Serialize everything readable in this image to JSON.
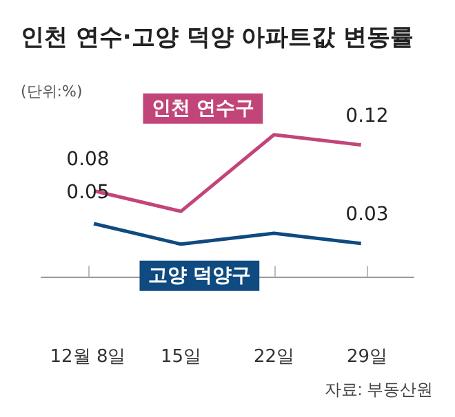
{
  "chart_data": {
    "type": "line",
    "title": "인천 연수·고양 덕양 아파트값 변동률",
    "subtitle": "(단위:%)",
    "annotations": [
      "자료: 부동산원"
    ],
    "categories": [
      "12월 8일",
      "15일",
      "22일",
      "29일"
    ],
    "series": [
      {
        "name": "인천 연수구",
        "color": "#c2457a",
        "values": [
          0.08,
          0.06,
          0.13,
          0.12
        ],
        "value_labels": [
          "0.08",
          null,
          null,
          "0.12"
        ]
      },
      {
        "name": "고양 덕양구",
        "color": "#0f4a80",
        "values": [
          0.05,
          0.03,
          0.04,
          0.03
        ],
        "value_labels": [
          "0.05",
          null,
          null,
          "0.03"
        ]
      }
    ],
    "tick_labels": "x",
    "grid": false,
    "legend": false,
    "marker": "circle",
    "line_style": "solid"
  }
}
